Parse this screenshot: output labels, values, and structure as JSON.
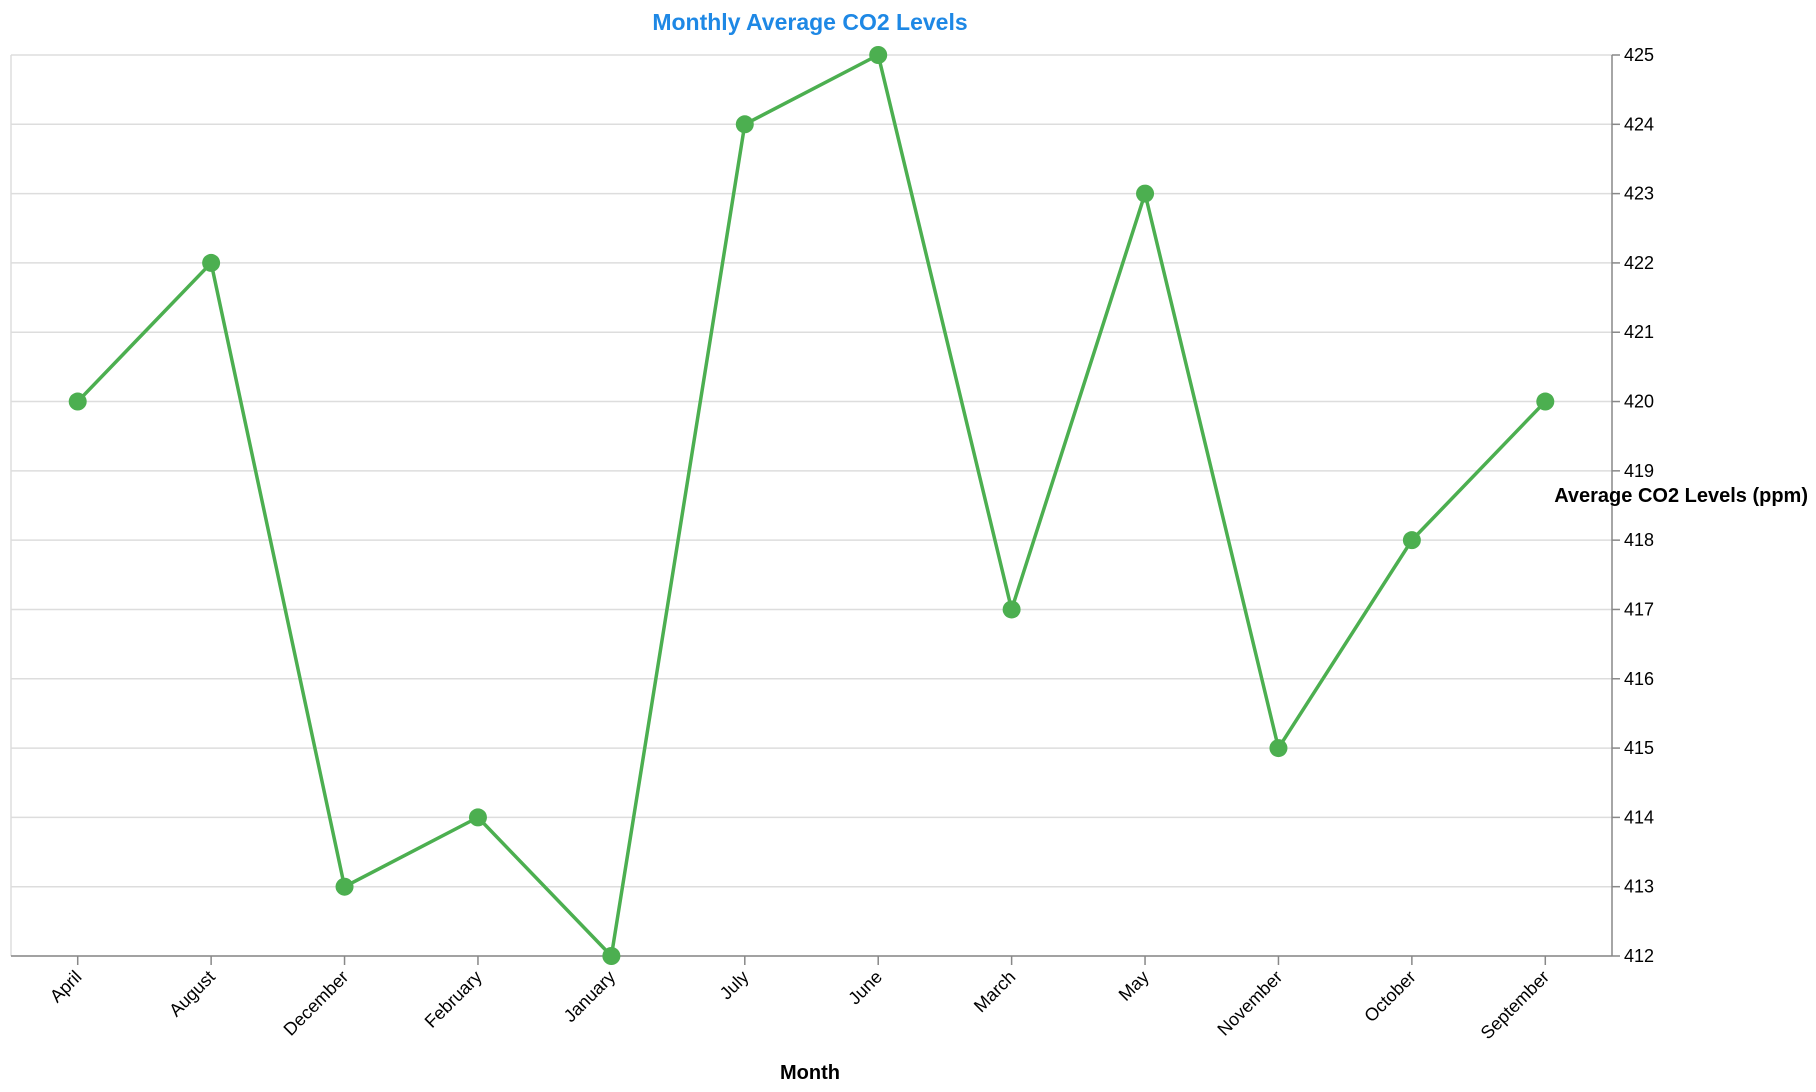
{
  "chart_data": {
    "type": "line",
    "title": "Monthly Average CO2 Levels",
    "xlabel": "Month",
    "ylabel": "Average CO2 Levels (ppm)",
    "categories": [
      "April",
      "August",
      "December",
      "February",
      "January",
      "July",
      "June",
      "March",
      "May",
      "November",
      "October",
      "September"
    ],
    "values": [
      420,
      422,
      413,
      414,
      412,
      424,
      425,
      417,
      423,
      415,
      418,
      420
    ],
    "ylim": [
      412,
      425
    ],
    "yticks": [
      412,
      413,
      414,
      415,
      416,
      417,
      418,
      419,
      420,
      421,
      422,
      423,
      424,
      425
    ],
    "grid": true,
    "y_axis_side": "right",
    "colors": {
      "line": "#4caf50",
      "point": "#4caf50",
      "title": "#1e88e5"
    }
  }
}
